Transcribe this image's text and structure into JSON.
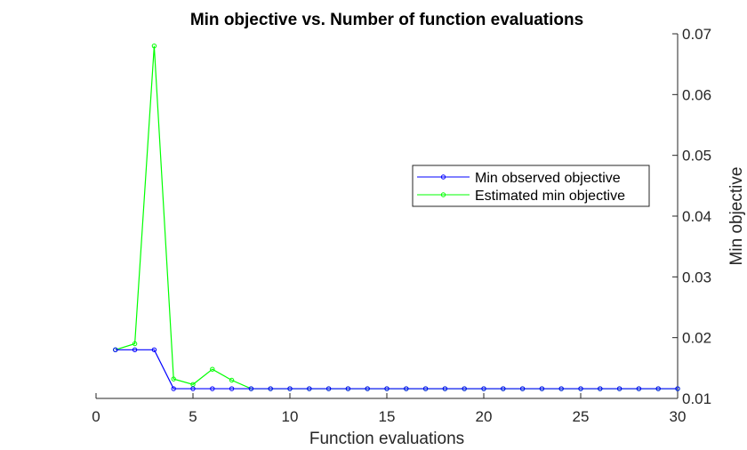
{
  "chart_data": {
    "type": "line",
    "title": "Min objective vs. Number of function evaluations",
    "xlabel": "Function evaluations",
    "ylabel": "Min objective",
    "xlim": [
      0,
      30
    ],
    "ylim": [
      0.01,
      0.07
    ],
    "xticks": [
      0,
      5,
      10,
      15,
      20,
      25,
      30
    ],
    "xtick_labels": [
      "0",
      "5",
      "10",
      "15",
      "20",
      "25",
      "30"
    ],
    "yticks": [
      0.01,
      0.02,
      0.03,
      0.04,
      0.05,
      0.06,
      0.07
    ],
    "ytick_labels": [
      "0.01",
      "0.02",
      "0.03",
      "0.04",
      "0.05",
      "0.06",
      "0.07"
    ],
    "y_axis_location": "right",
    "grid": false,
    "legend_position": "right, vertically centered",
    "x": [
      1,
      2,
      3,
      4,
      5,
      6,
      7,
      8,
      9,
      10,
      11,
      12,
      13,
      14,
      15,
      16,
      17,
      18,
      19,
      20,
      21,
      22,
      23,
      24,
      25,
      26,
      27,
      28,
      29,
      30
    ],
    "series": [
      {
        "name": "Min observed objective",
        "color": "#0000ff",
        "marker": "circle",
        "values": [
          0.018,
          0.018,
          0.018,
          0.0116,
          0.0116,
          0.0116,
          0.0116,
          0.0116,
          0.0116,
          0.0116,
          0.0116,
          0.0116,
          0.0116,
          0.0116,
          0.0116,
          0.0116,
          0.0116,
          0.0116,
          0.0116,
          0.0116,
          0.0116,
          0.0116,
          0.0116,
          0.0116,
          0.0116,
          0.0116,
          0.0116,
          0.0116,
          0.0116,
          0.0116
        ]
      },
      {
        "name": "Estimated min objective",
        "color": "#00ff00",
        "marker": "circle",
        "values": [
          0.018,
          0.019,
          0.068,
          0.0132,
          0.0123,
          0.0148,
          0.013,
          0.0116,
          0.0116,
          0.0116,
          0.0116,
          0.0116,
          0.0116,
          0.0116,
          0.0116,
          0.0116,
          0.0116,
          0.0116,
          0.0116,
          0.0116,
          0.0116,
          0.0116,
          0.0116,
          0.0116,
          0.0116,
          0.0116,
          0.0116,
          0.0116,
          0.0116,
          0.0116
        ]
      }
    ]
  }
}
